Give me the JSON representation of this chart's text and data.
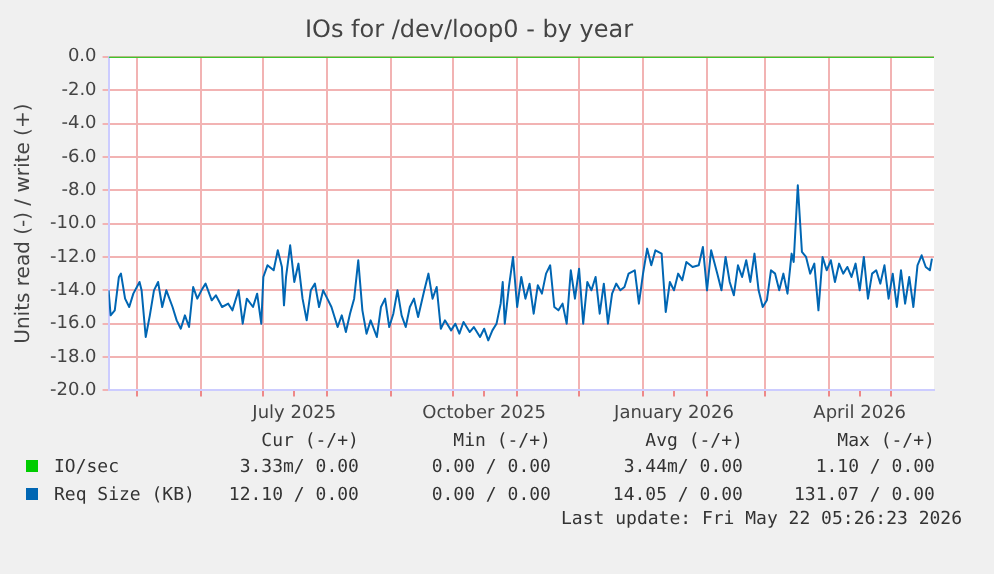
{
  "chart_data": {
    "type": "line",
    "title": "IOs for /dev/loop0 - by year",
    "ylabel": "Units read (-) / write (+)",
    "xlim": [
      "2025-04-17",
      "2026-05-22"
    ],
    "xticks": [
      {
        "value": "2025-05-01",
        "label": null
      },
      {
        "value": "2025-06-01",
        "label": null
      },
      {
        "value": "2025-07-01",
        "label": null
      },
      {
        "value": "2025-07-16",
        "label": "July 2025"
      },
      {
        "value": "2025-08-01",
        "label": null
      },
      {
        "value": "2025-09-01",
        "label": null
      },
      {
        "value": "2025-10-01",
        "label": null
      },
      {
        "value": "2025-10-16",
        "label": "October 2025"
      },
      {
        "value": "2025-11-01",
        "label": null
      },
      {
        "value": "2025-12-01",
        "label": null
      },
      {
        "value": "2026-01-01",
        "label": null
      },
      {
        "value": "2026-01-16",
        "label": "January 2026"
      },
      {
        "value": "2026-02-01",
        "label": null
      },
      {
        "value": "2026-03-01",
        "label": null
      },
      {
        "value": "2026-04-01",
        "label": null
      },
      {
        "value": "2026-04-16",
        "label": "April 2026"
      },
      {
        "value": "2026-05-01",
        "label": null
      }
    ],
    "ylim": [
      -20,
      0
    ],
    "yticks": [
      {
        "value": 0,
        "label": "0.0"
      },
      {
        "value": -2,
        "label": "-2.0"
      },
      {
        "value": -4,
        "label": "-4.0"
      },
      {
        "value": -6,
        "label": "-6.0"
      },
      {
        "value": -8,
        "label": "-8.0"
      },
      {
        "value": -10,
        "label": "-10.0"
      },
      {
        "value": -12,
        "label": "-12.0"
      },
      {
        "value": -14,
        "label": "-14.0"
      },
      {
        "value": -16,
        "label": "-16.0"
      },
      {
        "value": -18,
        "label": "-18.0"
      },
      {
        "value": -20,
        "label": "-20.0"
      }
    ],
    "grid": true,
    "legend": "bottom",
    "marker": "none",
    "line_style": "solid",
    "series": [
      {
        "name": "IO/sec",
        "color": "#00cc00",
        "x": [
          "2025-04-17",
          "2026-05-22"
        ],
        "values": [
          0,
          0
        ]
      },
      {
        "name": "Req Size (KB)",
        "color": "#0066b3",
        "x": [
          "2025-04-17",
          "2025-04-18",
          "2025-04-20",
          "2025-04-22",
          "2025-04-23",
          "2025-04-25",
          "2025-04-27",
          "2025-04-29",
          "2025-05-02",
          "2025-05-03",
          "2025-05-05",
          "2025-05-07",
          "2025-05-09",
          "2025-05-11",
          "2025-05-13",
          "2025-05-15",
          "2025-05-18",
          "2025-05-20",
          "2025-05-22",
          "2025-05-24",
          "2025-05-26",
          "2025-05-28",
          "2025-05-30",
          "2025-06-01",
          "2025-06-03",
          "2025-06-06",
          "2025-06-08",
          "2025-06-11",
          "2025-06-14",
          "2025-06-16",
          "2025-06-19",
          "2025-06-21",
          "2025-06-23",
          "2025-06-26",
          "2025-06-28",
          "2025-06-30",
          "2025-07-01",
          "2025-07-03",
          "2025-07-06",
          "2025-07-08",
          "2025-07-10",
          "2025-07-11",
          "2025-07-12",
          "2025-07-14",
          "2025-07-16",
          "2025-07-18",
          "2025-07-20",
          "2025-07-22",
          "2025-07-24",
          "2025-07-26",
          "2025-07-28",
          "2025-07-30",
          "2025-08-01",
          "2025-08-03",
          "2025-08-06",
          "2025-08-08",
          "2025-08-10",
          "2025-08-12",
          "2025-08-14",
          "2025-08-16",
          "2025-08-18",
          "2025-08-20",
          "2025-08-22",
          "2025-08-25",
          "2025-08-27",
          "2025-08-29",
          "2025-08-31",
          "2025-09-02",
          "2025-09-04",
          "2025-09-06",
          "2025-09-08",
          "2025-09-10",
          "2025-09-12",
          "2025-09-14",
          "2025-09-17",
          "2025-09-19",
          "2025-09-21",
          "2025-09-23",
          "2025-09-25",
          "2025-09-27",
          "2025-09-30",
          "2025-10-02",
          "2025-10-04",
          "2025-10-06",
          "2025-10-09",
          "2025-10-11",
          "2025-10-14",
          "2025-10-16",
          "2025-10-18",
          "2025-10-20",
          "2025-10-22",
          "2025-10-24",
          "2025-10-25",
          "2025-10-26",
          "2025-10-28",
          "2025-10-30",
          "2025-11-01",
          "2025-11-03",
          "2025-11-05",
          "2025-11-07",
          "2025-11-09",
          "2025-11-11",
          "2025-11-13",
          "2025-11-15",
          "2025-11-17",
          "2025-11-19",
          "2025-11-21",
          "2025-11-23",
          "2025-11-25",
          "2025-11-27",
          "2025-11-29",
          "2025-12-01",
          "2025-12-03",
          "2025-12-05",
          "2025-12-07",
          "2025-12-09",
          "2025-12-11",
          "2025-12-13",
          "2025-12-15",
          "2025-12-17",
          "2025-12-19",
          "2025-12-21",
          "2025-12-23",
          "2025-12-25",
          "2025-12-28",
          "2025-12-30",
          "2026-01-01",
          "2026-01-03",
          "2026-01-05",
          "2026-01-07",
          "2026-01-10",
          "2026-01-12",
          "2026-01-14",
          "2026-01-16",
          "2026-01-18",
          "2026-01-20",
          "2026-01-22",
          "2026-01-25",
          "2026-01-28",
          "2026-01-30",
          "2026-02-01",
          "2026-02-03",
          "2026-02-06",
          "2026-02-08",
          "2026-02-10",
          "2026-02-12",
          "2026-02-14",
          "2026-02-16",
          "2026-02-18",
          "2026-02-20",
          "2026-02-22",
          "2026-02-24",
          "2026-02-26",
          "2026-02-28",
          "2026-03-02",
          "2026-03-04",
          "2026-03-06",
          "2026-03-08",
          "2026-03-10",
          "2026-03-12",
          "2026-03-14",
          "2026-03-15",
          "2026-03-17",
          "2026-03-19",
          "2026-03-21",
          "2026-03-23",
          "2026-03-25",
          "2026-03-27",
          "2026-03-29",
          "2026-03-31",
          "2026-04-02",
          "2026-04-04",
          "2026-04-06",
          "2026-04-08",
          "2026-04-10",
          "2026-04-12",
          "2026-04-14",
          "2026-04-16",
          "2026-04-18",
          "2026-04-20",
          "2026-04-22",
          "2026-04-24",
          "2026-04-26",
          "2026-04-28",
          "2026-04-30",
          "2026-05-02",
          "2026-05-04",
          "2026-05-06",
          "2026-05-08",
          "2026-05-10",
          "2026-05-12",
          "2026-05-14",
          "2026-05-16",
          "2026-05-18",
          "2026-05-20",
          "2026-05-21"
        ],
        "values": [
          -14.0,
          -15.5,
          -15.2,
          -13.2,
          -13.0,
          -14.5,
          -15.0,
          -14.2,
          -13.5,
          -14.0,
          -16.8,
          -15.5,
          -14.0,
          -13.5,
          -15.0,
          -14.0,
          -15.0,
          -15.8,
          -16.3,
          -15.5,
          -16.2,
          -13.8,
          -14.5,
          -14.0,
          -13.6,
          -14.6,
          -14.3,
          -15.0,
          -14.8,
          -15.2,
          -14.0,
          -16.0,
          -14.5,
          -15.0,
          -14.2,
          -16.0,
          -13.2,
          -12.5,
          -12.8,
          -11.6,
          -12.6,
          -14.9,
          -13.2,
          -11.3,
          -13.5,
          -12.4,
          -14.5,
          -15.8,
          -14.0,
          -13.6,
          -15.0,
          -14.0,
          -14.5,
          -15.0,
          -16.2,
          -15.5,
          -16.5,
          -15.4,
          -14.5,
          -12.2,
          -15.2,
          -16.6,
          -15.8,
          -16.8,
          -15.0,
          -14.5,
          -16.2,
          -15.4,
          -14.0,
          -15.5,
          -16.2,
          -15.0,
          -14.5,
          -15.6,
          -14.0,
          -13.0,
          -14.5,
          -13.8,
          -16.3,
          -15.8,
          -16.4,
          -16.0,
          -16.6,
          -15.9,
          -16.5,
          -16.2,
          -16.8,
          -16.3,
          -17.0,
          -16.4,
          -16.0,
          -14.8,
          -13.5,
          -16.0,
          -13.8,
          -12.0,
          -15.0,
          -13.2,
          -14.5,
          -13.6,
          -15.4,
          -13.7,
          -14.2,
          -13.0,
          -12.5,
          -15.0,
          -15.2,
          -14.8,
          -16.0,
          -12.8,
          -14.5,
          -12.7,
          -16.0,
          -13.5,
          -14.0,
          -13.2,
          -15.4,
          -13.6,
          -16.0,
          -14.2,
          -13.6,
          -14.0,
          -13.8,
          -13.0,
          -12.8,
          -14.8,
          -13.0,
          -11.5,
          -12.5,
          -11.6,
          -11.8,
          -15.3,
          -13.5,
          -14.0,
          -13.0,
          -13.4,
          -12.3,
          -12.6,
          -12.5,
          -11.4,
          -14.0,
          -11.6,
          -13.0,
          -14.0,
          -12.0,
          -13.5,
          -14.3,
          -12.5,
          -13.2,
          -12.2,
          -13.5,
          -11.8,
          -14.0,
          -15.0,
          -14.6,
          -12.8,
          -13.0,
          -14.0,
          -13.0,
          -14.2,
          -11.8,
          -12.3,
          -7.7,
          -11.7,
          -12.0,
          -13.0,
          -12.4,
          -15.2,
          -12.0,
          -12.8,
          -12.2,
          -13.5,
          -12.4,
          -13.0,
          -12.6,
          -13.2,
          -12.4,
          -14.0,
          -12.0,
          -14.5,
          -13.0,
          -12.8,
          -13.6,
          -12.5,
          -14.5,
          -13.0,
          -15.0,
          -12.8,
          -14.8,
          -13.2,
          -15.0,
          -12.5,
          -11.9,
          -12.6,
          -12.8,
          -12.1
        ]
      }
    ],
    "annotations": [
      "Cur (-/+)",
      "Min (-/+)",
      "Avg (-/+)",
      "Max (-/+)",
      "3.33m/ 0.00",
      "0.00 / 0.00",
      "3.44m/ 0.00",
      "1.10 / 0.00",
      "12.10 / 0.00",
      "0.00 / 0.00",
      "14.05 / 0.00",
      "131.07 / 0.00",
      "Last update: Fri May 22 05:26:23 2026"
    ]
  }
}
